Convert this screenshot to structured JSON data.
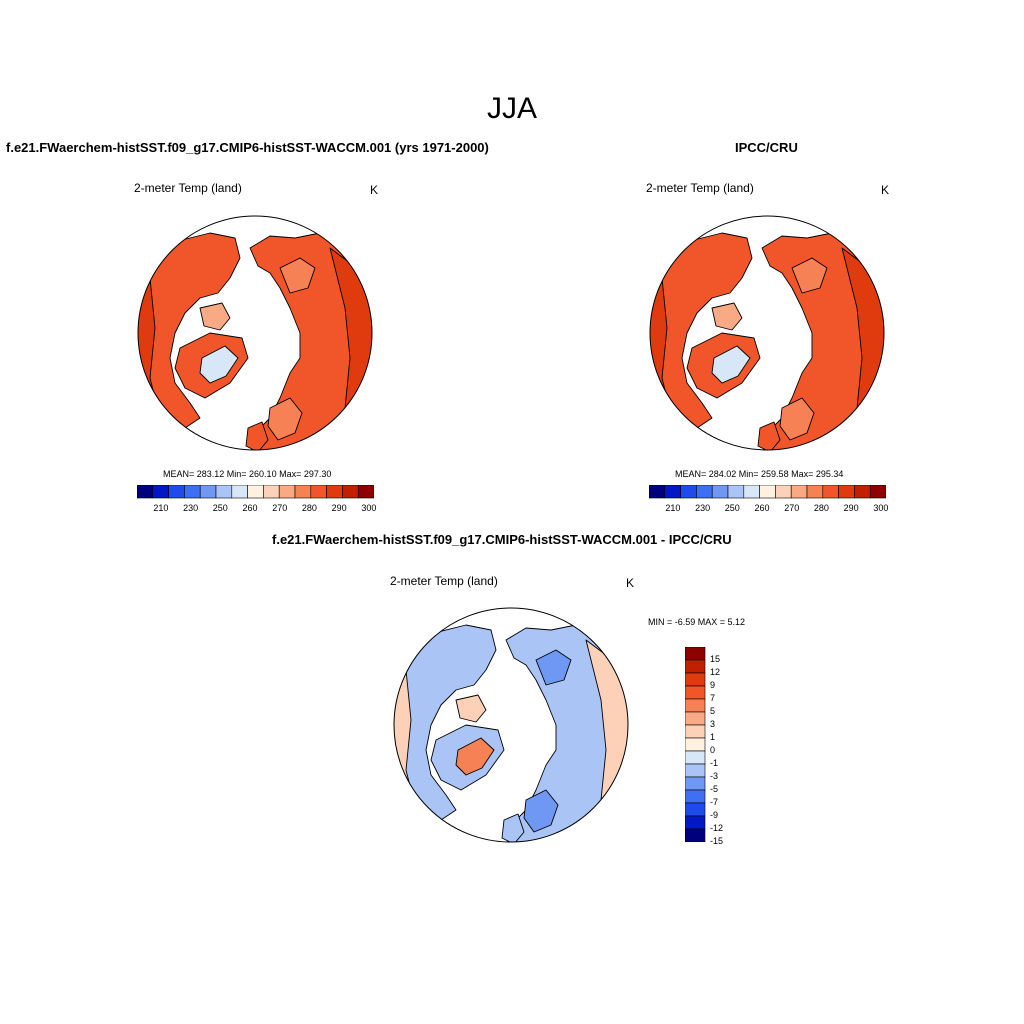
{
  "title": "JJA",
  "panels": {
    "top_left": {
      "title": "f.e21.FWaerchem-histSST.f09_g17.CMIP6-histSST-WACCM.001 (yrs 1971-2000)",
      "subtitle": "2-meter Temp (land)",
      "units": "K",
      "stats": "MEAN= 283.12  Min= 260.10  Max= 297.30"
    },
    "top_right": {
      "title": "IPCC/CRU",
      "subtitle": "2-meter Temp (land)",
      "units": "K",
      "stats": "MEAN= 284.02  Min= 259.58  Max= 295.34"
    },
    "bottom": {
      "title": "f.e21.FWaerchem-histSST.f09_g17.CMIP6-histSST-WACCM.001 - IPCC/CRU",
      "subtitle": "2-meter Temp (land)",
      "units": "K",
      "stats": "MIN =  -6.59 MAX =   5.12"
    }
  },
  "colorbar_abs": {
    "colors": [
      "#00007f",
      "#0019c3",
      "#1f4bea",
      "#3f6ff2",
      "#6f98f5",
      "#a9c4f5",
      "#d8e7f8",
      "#fff0e0",
      "#fcd1b7",
      "#faa985",
      "#f68154",
      "#f1562a",
      "#df3b0e",
      "#c12000",
      "#8c0000"
    ],
    "labels": [
      "210",
      "230",
      "250",
      "260",
      "270",
      "280",
      "290",
      "300"
    ]
  },
  "colorbar_diff": {
    "colors": [
      "#00007f",
      "#0019c3",
      "#1f4bea",
      "#3f6ff2",
      "#6f98f5",
      "#a9c4f5",
      "#d8e7f8",
      "#fff0e0",
      "#fcd1b7",
      "#faa985",
      "#f68154",
      "#f1562a",
      "#df3b0e",
      "#c12000",
      "#8c0000"
    ],
    "labels": [
      "15",
      "12",
      "9",
      "7",
      "5",
      "3",
      "1",
      "0",
      "-1",
      "-3",
      "-5",
      "-7",
      "-9",
      "-12",
      "-15"
    ]
  },
  "map_colors": {
    "ocean": "#ffffff",
    "warm_dark": "#df3b0e",
    "warm_mid": "#f1562a",
    "warm_light": "#f68154",
    "warm_pale": "#faa985",
    "cool_pale": "#d8e7f8",
    "diff_blue": "#a9c4f5",
    "diff_blue_dark": "#6f98f5",
    "diff_pink": "#fcd1b7"
  }
}
